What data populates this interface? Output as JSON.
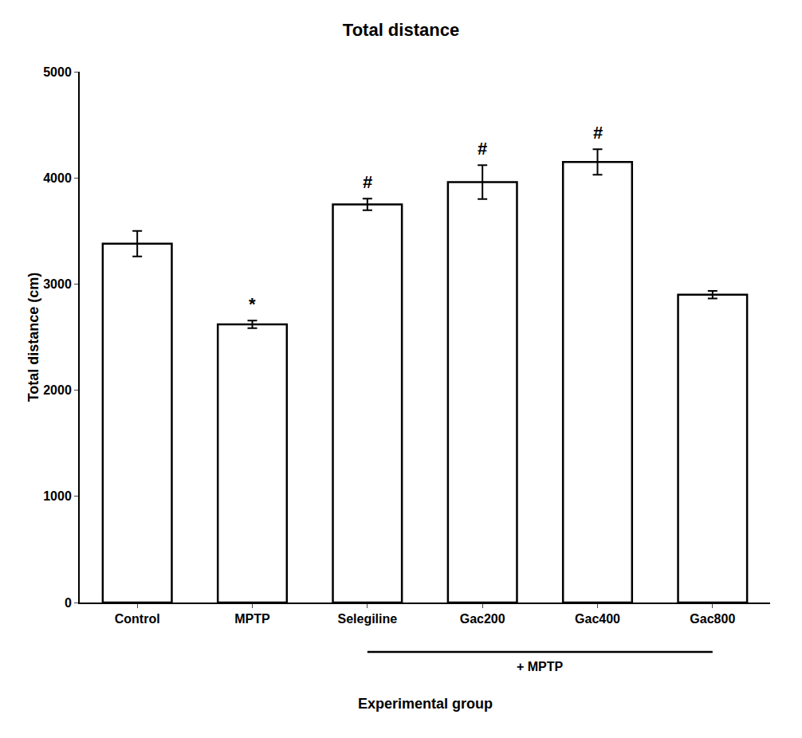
{
  "chart_data": {
    "type": "bar",
    "title": "Total distance",
    "xlabel": "Experimental group",
    "ylabel": "Total distance (cm)",
    "categories": [
      "Control",
      "MPTP",
      "Selegiline",
      "Gac200",
      "Gac400",
      "Gac800"
    ],
    "values": [
      3380,
      2620,
      3750,
      3960,
      4150,
      2900
    ],
    "errors": [
      120,
      35,
      55,
      160,
      120,
      35
    ],
    "color": "#ffffff",
    "ylim": [
      0,
      5000
    ],
    "yticks": [
      0,
      1000,
      2000,
      3000,
      4000,
      5000
    ],
    "grid": false,
    "annotations": [
      {
        "text": "*",
        "category": "MPTP"
      },
      {
        "text": "#",
        "category": "Selegiline"
      },
      {
        "text": "#",
        "category": "Gac200"
      },
      {
        "text": "#",
        "category": "Gac400"
      },
      {
        "text": "+ MPTP",
        "from": "Selegiline",
        "to": "Gac800"
      }
    ]
  }
}
